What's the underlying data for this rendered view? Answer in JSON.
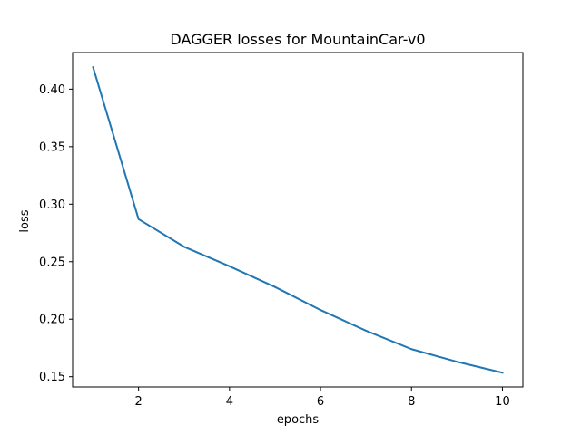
{
  "chart_data": {
    "type": "line",
    "title": "DAGGER losses for MountainCar-v0",
    "xlabel": "epochs",
    "ylabel": "loss",
    "xlim": [
      0.55,
      10.45
    ],
    "ylim": [
      0.1411,
      0.4318
    ],
    "x_ticks": [
      2,
      4,
      6,
      8,
      10
    ],
    "x_tick_labels": [
      "2",
      "4",
      "6",
      "8",
      "10"
    ],
    "y_ticks": [
      0.15,
      0.2,
      0.25,
      0.3,
      0.35,
      0.4
    ],
    "y_tick_labels": [
      "0.15",
      "0.20",
      "0.25",
      "0.30",
      "0.35",
      "0.40"
    ],
    "grid": false,
    "series": [
      {
        "color": "#1f77b4",
        "x": [
          1,
          2,
          3,
          4,
          5,
          6,
          7,
          8,
          9,
          10
        ],
        "y": [
          0.419,
          0.287,
          0.263,
          0.246,
          0.228,
          0.208,
          0.19,
          0.174,
          0.163,
          0.1535
        ]
      }
    ]
  }
}
